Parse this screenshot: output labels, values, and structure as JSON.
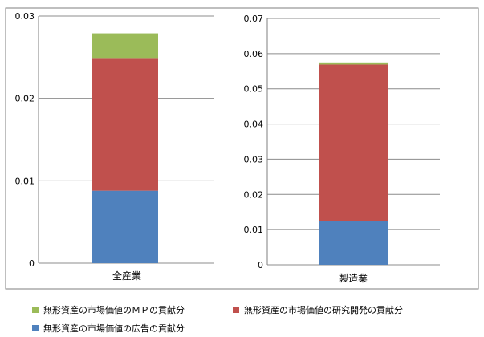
{
  "chart_data": [
    {
      "type": "bar",
      "stacked": true,
      "categories": [
        "全産業"
      ],
      "series": [
        {
          "name": "無形資産の市場価値の広告の貢献分",
          "values": [
            0.0088
          ]
        },
        {
          "name": "無形資産の市場価値の研究開発の貢献分",
          "values": [
            0.0161
          ]
        },
        {
          "name": "無形資産の市場価値のＭＰの貢献分",
          "values": [
            0.003
          ]
        }
      ],
      "ylim": [
        0,
        0.03
      ],
      "yticks": [
        "0",
        "0.01",
        "0.02",
        "0.03"
      ],
      "grid": true
    },
    {
      "type": "bar",
      "stacked": true,
      "categories": [
        "製造業"
      ],
      "series": [
        {
          "name": "無形資産の市場価値の広告の貢献分",
          "values": [
            0.0124
          ]
        },
        {
          "name": "無形資産の市場価値の研究開発の貢献分",
          "values": [
            0.0445
          ]
        },
        {
          "name": "無形資産の市場価値のＭＰの貢献分",
          "values": [
            0.0006
          ]
        }
      ],
      "ylim": [
        0,
        0.07
      ],
      "yticks": [
        "0",
        "0.01",
        "0.02",
        "0.03",
        "0.04",
        "0.05",
        "0.06",
        "0.07"
      ],
      "grid": true
    }
  ],
  "legend": {
    "placement": "bottom",
    "items": [
      {
        "label": "無形資産の市場価値のＭＰの貢献分",
        "color": "#9bbb59"
      },
      {
        "label": "無形資産の市場価値の研究開発の貢献分",
        "color": "#c0504d"
      },
      {
        "label": "無形資産の市場価値の広告の貢献分",
        "color": "#4f81bd"
      }
    ]
  },
  "colors": {
    "advertising": "#4f81bd",
    "rnd": "#c0504d",
    "mp": "#9bbb59",
    "grid": "#8c8c8c",
    "frame": "#7f7f7f"
  }
}
